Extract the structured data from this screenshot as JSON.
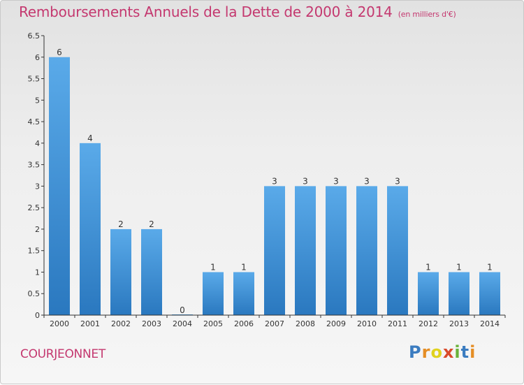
{
  "header": {
    "title": "Remboursements Annuels de la Dette de 2000 à 2014",
    "subtitle": "(en milliers d'€)"
  },
  "footer": {
    "commune": "COURJEONNET",
    "logo_letters": [
      "P",
      "r",
      "o",
      "x",
      "i",
      "t",
      "i"
    ],
    "logo_colors": [
      "#3b7cc0",
      "#e58e25",
      "#e0d21e",
      "#d94a2b",
      "#6ab23a",
      "#3b7cc0",
      "#e58e25"
    ]
  },
  "chart_data": {
    "type": "bar",
    "title": "Remboursements Annuels de la Dette de 2000 à 2014",
    "subtitle": "(en milliers d'€)",
    "categories": [
      "2000",
      "2001",
      "2002",
      "2003",
      "2004",
      "2005",
      "2006",
      "2007",
      "2008",
      "2009",
      "2010",
      "2011",
      "2012",
      "2013",
      "2014"
    ],
    "values": [
      6,
      4,
      2,
      2,
      0,
      1,
      1,
      3,
      3,
      3,
      3,
      3,
      1,
      1,
      1
    ],
    "data_labels": [
      "6",
      "4",
      "2",
      "2",
      "0",
      "1",
      "1",
      "3",
      "3",
      "3",
      "3",
      "3",
      "1",
      "1",
      "1"
    ],
    "ylim": [
      0,
      6.5
    ],
    "yticks": [
      0,
      0.5,
      1,
      1.5,
      2,
      2.5,
      3,
      3.5,
      4,
      4.5,
      5,
      5.5,
      6,
      6.5
    ],
    "ytick_labels": [
      "0",
      "0.5",
      "1",
      "1.5",
      "2",
      "2.5",
      "3",
      "3.5",
      "4",
      "4.5",
      "5",
      "5.5",
      "6",
      "6.5"
    ],
    "grid": false,
    "legend": "none",
    "colors": {
      "bar_light": "#5aaae9",
      "bar_dark": "#2a78bf",
      "axis": "#333333",
      "label": "#333333"
    }
  }
}
